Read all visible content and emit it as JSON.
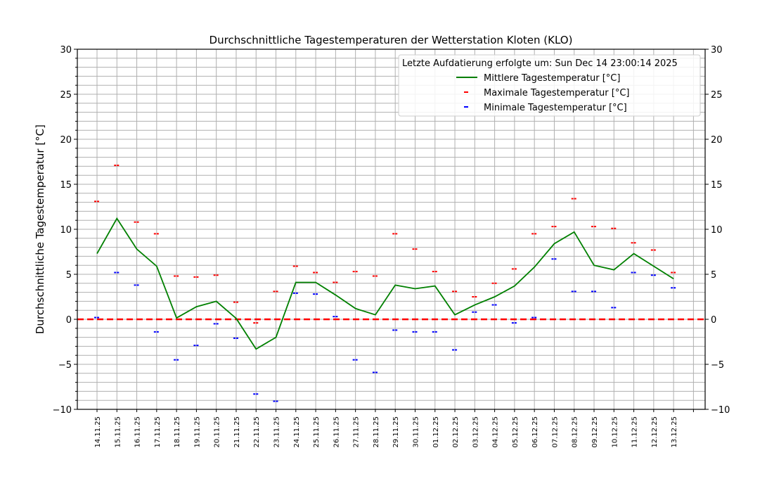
{
  "chart_data": {
    "type": "line",
    "title": "Durchschnittliche Tagestemperaturen der Wetterstation Kloten (KLO)",
    "xlabel": "",
    "ylabel": "Durchschnittliche Tagestemperatur [°C]",
    "ylim": [
      -10,
      30
    ],
    "yticks": [
      -10,
      -5,
      0,
      5,
      10,
      15,
      20,
      25,
      30
    ],
    "grid": true,
    "legend_placement": "top-right",
    "legend_title": "Letzte Aufdatierung erfolgte um: Sun Dec 14 23:00:14 2025",
    "categories": [
      "14.11.25",
      "15.11.25",
      "16.11.25",
      "17.11.25",
      "18.11.25",
      "19.11.25",
      "20.11.25",
      "21.11.25",
      "22.11.25",
      "23.11.25",
      "24.11.25",
      "25.11.25",
      "26.11.25",
      "27.11.25",
      "28.11.25",
      "29.11.25",
      "30.11.25",
      "01.12.25",
      "02.12.25",
      "03.12.25",
      "04.12.25",
      "05.12.25",
      "06.12.25",
      "07.12.25",
      "08.12.25",
      "09.12.25",
      "10.12.25",
      "11.12.25",
      "12.12.25",
      "13.12.25"
    ],
    "series": [
      {
        "name": "Mittlere Tagestemperatur [°C]",
        "color": "#008000",
        "style": "line",
        "values": [
          7.3,
          11.2,
          7.8,
          5.9,
          0.15,
          1.4,
          2.0,
          0.1,
          -3.3,
          -2.0,
          4.1,
          4.1,
          2.7,
          1.2,
          0.5,
          3.8,
          3.4,
          3.7,
          0.5,
          1.6,
          2.5,
          3.7,
          5.8,
          8.4,
          9.7,
          6.0,
          5.5,
          7.3,
          5.9,
          4.5
        ]
      },
      {
        "name": "Maximale Tagestemperatur [°C]",
        "color": "#ff0000",
        "style": "marker",
        "values": [
          13.1,
          17.1,
          10.8,
          9.5,
          4.8,
          4.7,
          4.9,
          1.9,
          -0.4,
          3.1,
          5.9,
          5.2,
          4.1,
          5.3,
          4.8,
          9.5,
          7.8,
          5.3,
          3.1,
          2.5,
          4.0,
          5.6,
          9.5,
          10.3,
          13.4,
          10.3,
          10.1,
          8.5,
          7.7,
          5.2
        ]
      },
      {
        "name": "Minimale Tagestemperatur [°C]",
        "color": "#0000ff",
        "style": "marker",
        "values": [
          0.2,
          5.2,
          3.8,
          -1.4,
          -4.5,
          -2.9,
          -0.5,
          -2.1,
          -8.3,
          -9.1,
          2.9,
          2.8,
          0.3,
          -4.5,
          -5.9,
          -1.2,
          -1.4,
          -1.4,
          -3.4,
          0.8,
          1.6,
          -0.4,
          0.2,
          6.7,
          3.1,
          3.1,
          1.3,
          5.2,
          4.9,
          3.5
        ]
      }
    ],
    "reference_line": {
      "value": 0,
      "color": "#ff0000",
      "style": "dashed"
    }
  }
}
